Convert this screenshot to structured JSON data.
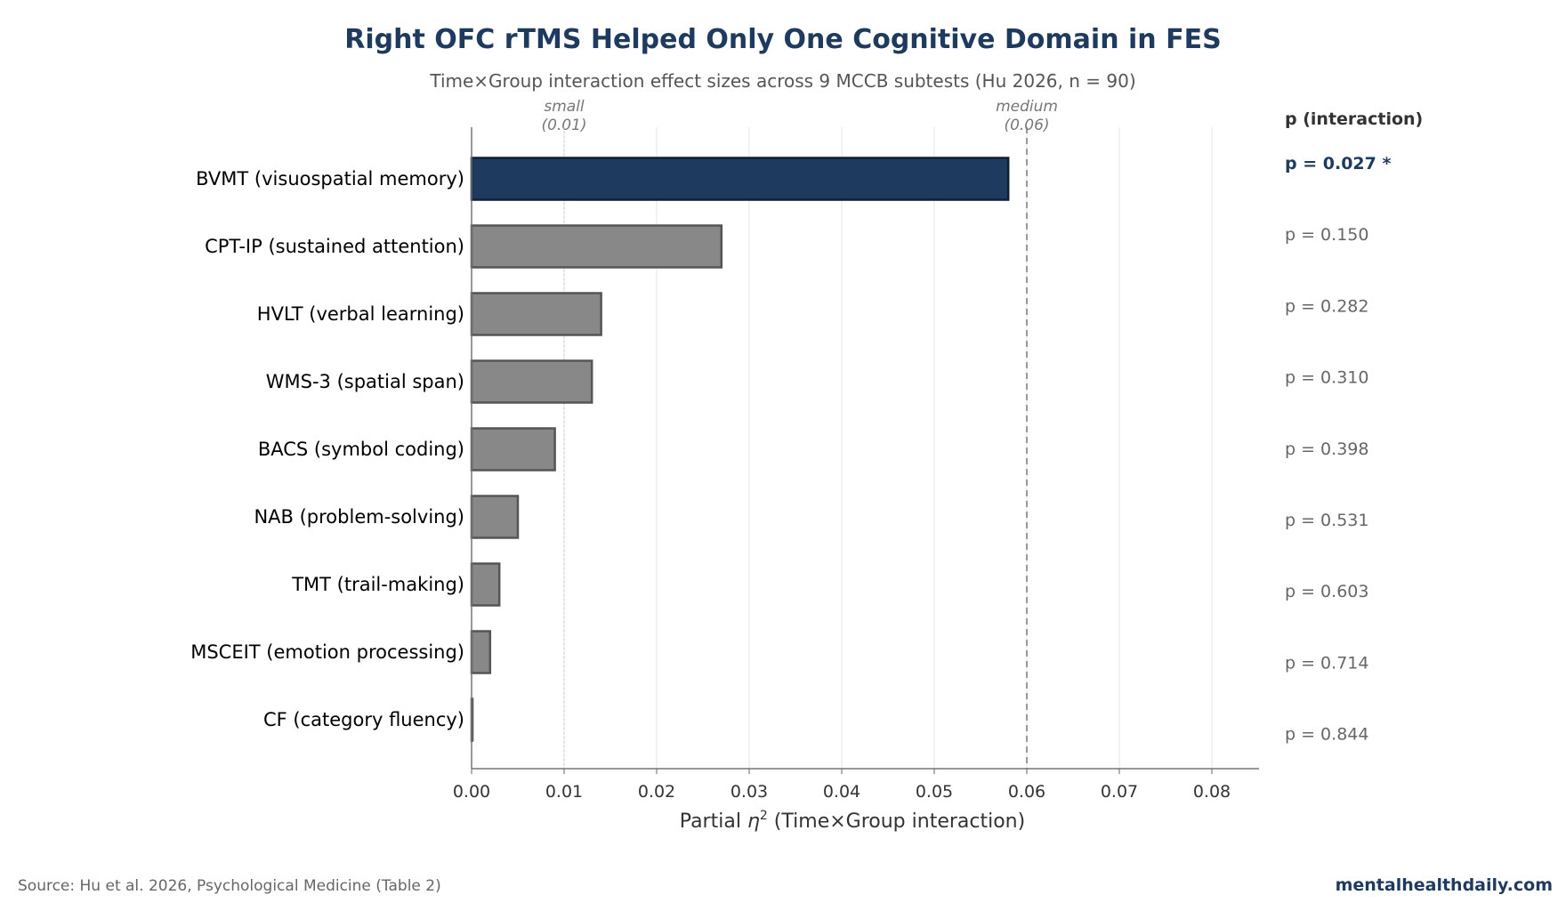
{
  "chart_data": {
    "type": "bar",
    "orientation": "horizontal",
    "title": "Right OFC rTMS Helped Only One Cognitive Domain in FES",
    "subtitle": "Time×Group interaction effect sizes across 9 MCCB subtests (Hu 2026, n = 90)",
    "xlabel_prefix": "Partial ",
    "xlabel_symbol": "η",
    "xlabel_exp": "2",
    "xlabel_suffix": " (Time×Group interaction)",
    "xlim": [
      0,
      0.085
    ],
    "xticks": [
      "0.00",
      "0.01",
      "0.02",
      "0.03",
      "0.04",
      "0.05",
      "0.06",
      "0.07",
      "0.08"
    ],
    "grid": "vertical",
    "categories": [
      "BVMT (visuospatial memory)",
      "CPT-IP (sustained attention)",
      "HVLT (verbal learning)",
      "WMS-3 (spatial span)",
      "BACS (symbol coding)",
      "NAB (problem-solving)",
      "TMT (trail-making)",
      "MSCEIT (emotion processing)",
      "CF (category fluency)"
    ],
    "values": [
      0.058,
      0.027,
      0.014,
      0.013,
      0.009,
      0.005,
      0.003,
      0.002,
      0.0001
    ],
    "highlight_index": 0,
    "colors": {
      "highlight": "#1f3a5f",
      "default": "#888888",
      "default_edge": "#555555",
      "highlight_edge": "#0f1f35"
    },
    "reference_lines": [
      {
        "value": 0.01,
        "label_top": "small",
        "label_bottom": "(0.01)",
        "style": "dotted"
      },
      {
        "value": 0.06,
        "label_top": "medium",
        "label_bottom": "(0.06)",
        "style": "dashed"
      }
    ],
    "p_header": "p (interaction)",
    "p_values": [
      "p = 0.027  *",
      "p = 0.150",
      "p = 0.282",
      "p = 0.310",
      "p = 0.398",
      "p = 0.531",
      "p = 0.603",
      "p = 0.714",
      "p = 0.844"
    ]
  },
  "footer": {
    "source": "Source: Hu et al. 2026, Psychological Medicine (Table 2)",
    "brand": "mentalhealthdaily.com"
  }
}
